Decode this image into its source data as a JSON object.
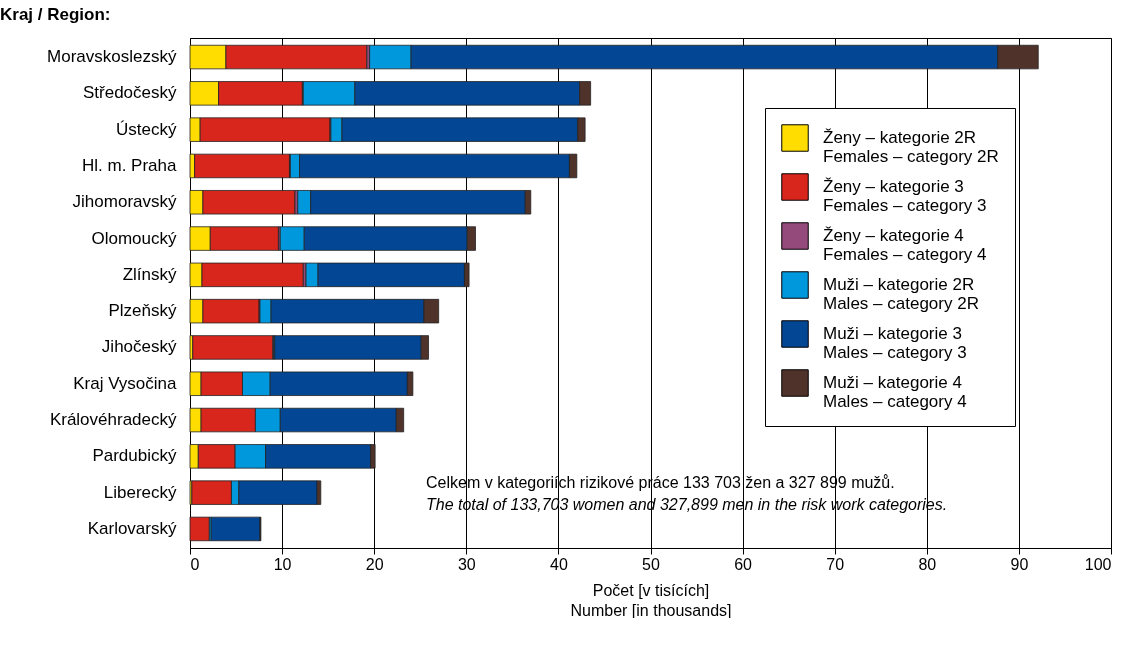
{
  "chart_data": {
    "type": "bar",
    "orientation": "horizontal",
    "stacked": true,
    "ylabel": "Kraj / Region:",
    "xlabel": "Počet [v tisících]\nNumber [in thousands]",
    "categories": [
      "Moravskoslezský",
      "Středočeský",
      "Ústecký",
      "Hl. m. Praha",
      "Jihomoravský",
      "Olomoucký",
      "Zlínský",
      "Plzeňský",
      "Jihočeský",
      "Kraj Vysočina",
      "Královéhradecký",
      "Pardubický",
      "Liberecký",
      "Karlovarský"
    ],
    "series": [
      {
        "name": "Ženy – kategorie 2R\nFemales – category 2R",
        "color": "#ffdd00",
        "values": [
          3.9,
          3.1,
          1.1,
          0.5,
          1.4,
          2.2,
          1.3,
          1.4,
          0.3,
          1.2,
          1.2,
          0.9,
          0.2,
          0
        ]
      },
      {
        "name": "Ženy – kategorie 3\nFemales – category 3",
        "color": "#d9261c",
        "values": [
          15.3,
          9.1,
          14.1,
          10.3,
          10.0,
          7.4,
          11.0,
          6.1,
          8.7,
          4.5,
          5.9,
          4.0,
          4.3,
          2.1
        ]
      },
      {
        "name": "Ženy – kategorie 4\nFemales – category 4",
        "color": "#954a7c",
        "values": [
          0.3,
          0.1,
          0.1,
          0.1,
          0.3,
          0.2,
          0.3,
          0.1,
          0.1,
          0,
          0,
          0,
          0,
          0
        ]
      },
      {
        "name": "Muži – kategorie 2R\nMales – category 2R",
        "color": "#0098dd",
        "values": [
          4.5,
          5.6,
          1.2,
          1.0,
          1.4,
          2.6,
          1.3,
          1.2,
          0.1,
          3.0,
          2.7,
          3.3,
          0.8,
          0.2
        ]
      },
      {
        "name": "Muži – kategorie 3\nMales – category 3",
        "color": "#034694",
        "values": [
          63.7,
          24.4,
          25.6,
          29.3,
          23.3,
          17.7,
          15.9,
          16.6,
          15.9,
          14.9,
          12.6,
          11.4,
          8.5,
          5.3
        ]
      },
      {
        "name": "Muži – kategorie 4\nMales – category 4",
        "color": "#4f332b",
        "values": [
          4.4,
          1.2,
          0.8,
          0.8,
          0.6,
          0.9,
          0.5,
          1.6,
          0.8,
          0.6,
          0.8,
          0.5,
          0.4,
          0.1
        ]
      }
    ],
    "xlim": [
      0,
      100
    ],
    "xticks": [
      0,
      10,
      20,
      30,
      40,
      50,
      60,
      70,
      80,
      90,
      100
    ],
    "grid": "x",
    "legend": "top right",
    "annotations": [
      "Celkem v kategoriích rizikové práce 133 703 žen a 327 899 mužů.",
      "The total of 133,703 women and 327,899 men in the risk work categories."
    ]
  }
}
